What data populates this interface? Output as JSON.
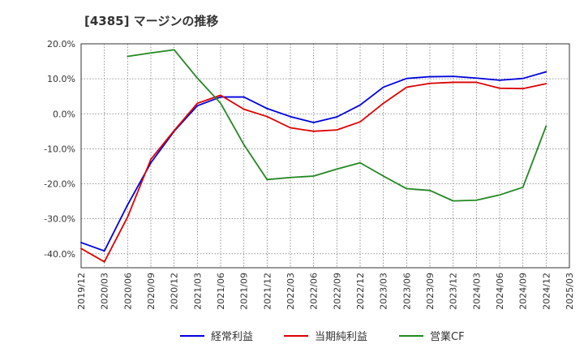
{
  "chart_data": {
    "type": "line",
    "title": "[4385]  マージンの推移",
    "xlabel": "",
    "ylabel": "",
    "ylim": [
      -44,
      20
    ],
    "yticks": [
      20,
      10,
      0,
      -10,
      -20,
      -30,
      -40
    ],
    "ytick_labels": [
      "20.0%",
      "10.0%",
      "0.0%",
      "-10.0%",
      "-20.0%",
      "-30.0%",
      "-40.0%"
    ],
    "categories": [
      "2019/12",
      "2020/03",
      "2020/06",
      "2020/09",
      "2020/12",
      "2021/03",
      "2021/06",
      "2021/09",
      "2021/12",
      "2022/03",
      "2022/06",
      "2022/09",
      "2022/12",
      "2023/03",
      "2023/06",
      "2023/09",
      "2023/12",
      "2024/03",
      "2024/06",
      "2024/09",
      "2024/12",
      "2025/03"
    ],
    "grid": true,
    "legend_position": "bottom",
    "series": [
      {
        "name": "経常利益",
        "color": "#0000dd",
        "values": [
          -36.8,
          -39.2,
          -26.0,
          -14.0,
          -5.0,
          2.3,
          4.8,
          4.8,
          1.5,
          -0.8,
          -2.5,
          -0.9,
          2.5,
          7.6,
          10.1,
          10.6,
          10.7,
          10.2,
          9.6,
          10.1,
          12.0,
          null
        ]
      },
      {
        "name": "当期純利益",
        "color": "#dd0000",
        "values": [
          -38.5,
          -42.3,
          -29.5,
          -13.0,
          -4.8,
          3.0,
          5.3,
          1.3,
          -0.8,
          -4.0,
          -5.0,
          -4.6,
          -2.3,
          3.0,
          7.6,
          8.7,
          9.0,
          9.0,
          7.3,
          7.2,
          8.6,
          null
        ]
      },
      {
        "name": "営業CF",
        "color": "#228822",
        "values": [
          null,
          null,
          16.4,
          17.4,
          18.3,
          10.2,
          3.0,
          -8.8,
          -18.8,
          -18.2,
          -17.8,
          -15.8,
          -14.0,
          -17.8,
          -21.4,
          -21.9,
          -24.9,
          -24.7,
          -23.2,
          -21.0,
          -3.5,
          null
        ]
      }
    ]
  }
}
